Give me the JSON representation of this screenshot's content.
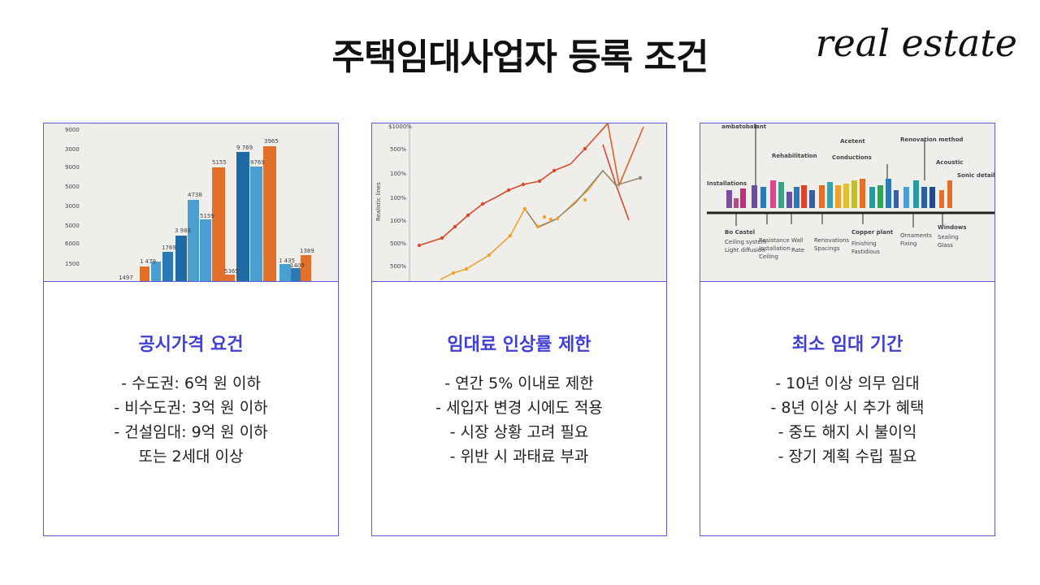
{
  "title": "주택임대사업자 등록 조건",
  "brand": "real estate",
  "cards": [
    {
      "image_icon": "bar-chart-illustration",
      "heading": "공시가격 요건",
      "lines": [
        "- 수도권: 6억 원 이하",
        "- 비수도권: 3억 원 이하",
        "- 건설임대: 9억 원 이하",
        "또는 2세대 이상"
      ]
    },
    {
      "image_icon": "line-chart-illustration",
      "heading": "임대료 인상률 제한",
      "lines": [
        "- 연간 5% 이내로 제한",
        "- 세입자 변경 시에도 적용",
        "- 시장 상황 고려 필요",
        "- 위반 시 과태료 부과"
      ]
    },
    {
      "image_icon": "timeline-chart-illustration",
      "heading": "최소 임대 기간",
      "lines": [
        "- 10년 이상 의무 임대",
        "- 8년 이상 시 추가 혜택",
        "- 중도 해지 시 불이익",
        "- 장기 계획 수립 필요"
      ]
    }
  ],
  "colors": {
    "accent": "#3f3fd6",
    "border": "#5b5bd6",
    "bar_blue_dark": "#1f6aa5",
    "bar_blue_light": "#4a9fd0",
    "bar_orange": "#e0702a",
    "line_red": "#d94a2b",
    "line_yellow": "#f0a030"
  }
}
